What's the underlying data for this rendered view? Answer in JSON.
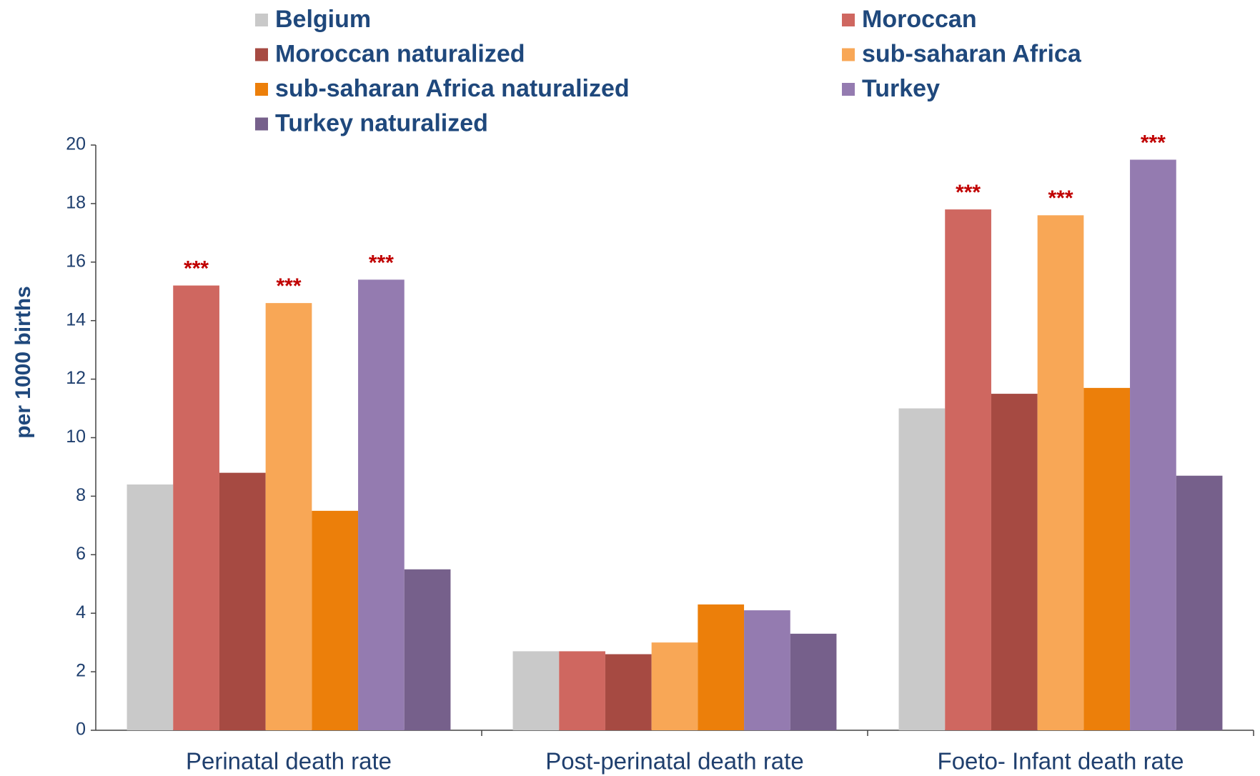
{
  "chart_data": {
    "type": "bar",
    "ylabel": "per 1000 births",
    "categories": [
      "Perinatal death rate",
      "Post-perinatal death rate",
      "Foeto- Infant death rate"
    ],
    "series": [
      {
        "name": "Belgium",
        "color": "#c9c9c9",
        "values": [
          8.4,
          2.7,
          11.0
        ]
      },
      {
        "name": "Moroccan",
        "color": "#cf6760",
        "values": [
          15.2,
          2.7,
          17.8
        ],
        "annotations": [
          "***",
          null,
          "***"
        ]
      },
      {
        "name": "Moroccan naturalized",
        "color": "#a64a42",
        "values": [
          8.8,
          2.6,
          11.5
        ]
      },
      {
        "name": "sub-saharan Africa",
        "color": "#f8a756",
        "values": [
          14.6,
          3.0,
          17.6
        ],
        "annotations": [
          "***",
          null,
          "***"
        ]
      },
      {
        "name": "sub-saharan Africa naturalized",
        "color": "#ec7f0a",
        "values": [
          7.5,
          4.3,
          11.7
        ]
      },
      {
        "name": "Turkey",
        "color": "#947bb0",
        "values": [
          15.4,
          4.1,
          19.5
        ],
        "annotations": [
          "***",
          null,
          "***"
        ]
      },
      {
        "name": "Turkey naturalized",
        "color": "#76608b",
        "values": [
          5.5,
          3.3,
          8.7
        ]
      }
    ],
    "ylim": [
      0,
      20
    ],
    "yticks": [
      0,
      2,
      4,
      6,
      8,
      10,
      12,
      14,
      16,
      18,
      20
    ],
    "grid": false
  }
}
